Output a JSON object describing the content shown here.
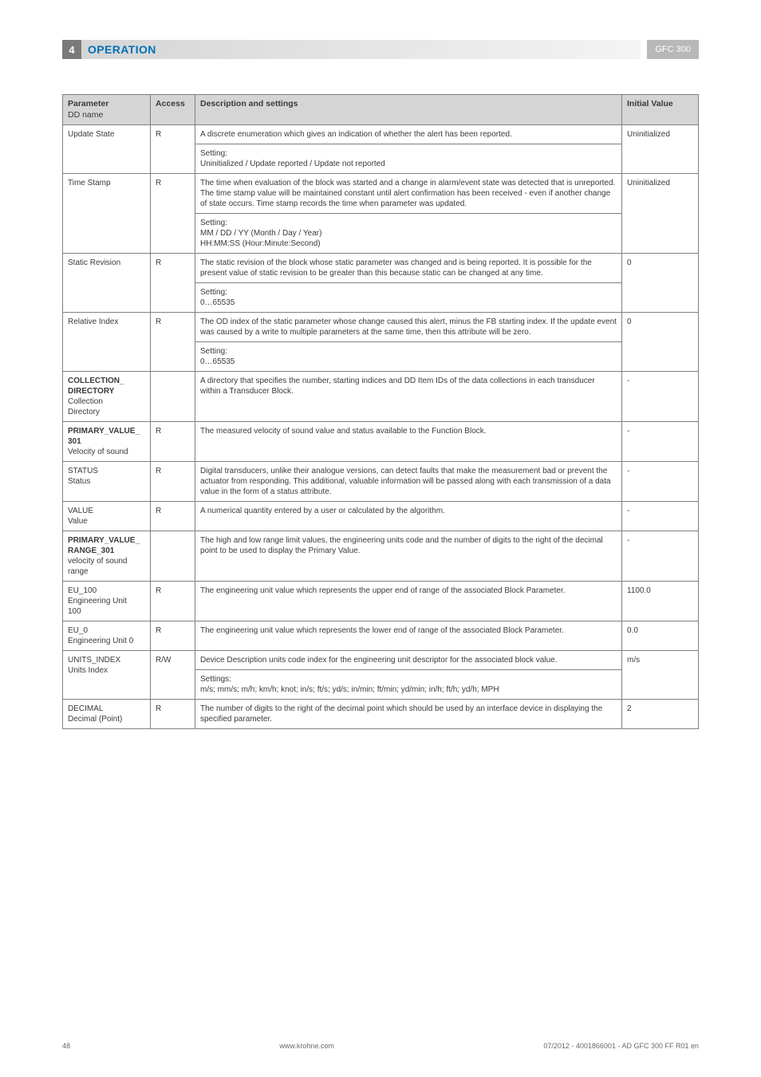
{
  "header": {
    "section_num": "4",
    "section_title": "OPERATION",
    "model": "GFC 300"
  },
  "table": {
    "head": {
      "param": "Parameter",
      "param_sub": "DD name",
      "access": "Access",
      "desc": "Description and settings",
      "initial": "Initial Value"
    },
    "rows": [
      {
        "param_bold": "",
        "param": "Update State",
        "access": "R",
        "desc": "A discrete enumeration which gives an indication of whether the alert has been reported.",
        "setting": "Setting:\nUninitialized / Update reported / Update not reported",
        "initial": "Uninitialized"
      },
      {
        "param_bold": "",
        "param": "Time Stamp",
        "access": "R",
        "desc": "The time when evaluation of the block was started and a change in alarm/event state was detected that is unreported. The time stamp value will be maintained constant until alert confirmation has been received - even if another change of state occurs. Time stamp records the time when parameter was updated.",
        "setting": "Setting:\nMM / DD / YY (Month / Day / Year)\nHH:MM:SS (Hour:Minute:Second)",
        "initial": "Uninitialized"
      },
      {
        "param_bold": "",
        "param": "Static Revision",
        "access": "R",
        "desc": "The static revision of the block whose static parameter was changed and is being reported. It is possible for the present value of static revision to be greater than this because static can be changed at any time.",
        "setting": "Setting:\n0…65535",
        "initial": "0"
      },
      {
        "param_bold": "",
        "param": "Relative Index",
        "access": "R",
        "desc": "The OD index of the static parameter whose change caused this alert, minus the FB starting index. If the update event was caused by a write to multiple parameters at the same time, then this attribute will be zero.",
        "setting": "Setting:\n0…65535",
        "initial": "0"
      },
      {
        "param_bold": "COLLECTION_\nDIRECTORY",
        "param": "Collection\nDirectory",
        "access": "",
        "desc": "A directory that specifies the number, starting indices and DD Item IDs of the data collections in each transducer within a Transducer Block.",
        "setting": "",
        "initial": "-"
      },
      {
        "param_bold": "PRIMARY_VALUE_\n301",
        "param": "Velocity of sound",
        "access": "R",
        "desc": "The measured velocity of sound value and status available to the Function Block.",
        "setting": "",
        "initial": "-"
      },
      {
        "param_bold": "",
        "param": "STATUS\nStatus",
        "access": "R",
        "desc": "Digital transducers, unlike their analogue versions, can detect faults that make the measurement bad or prevent the actuator from responding. This additional, valuable information will be passed along with each transmission of a data value in the form of a status attribute.",
        "setting": "",
        "initial": "-"
      },
      {
        "param_bold": "",
        "param": "VALUE\nValue",
        "access": "R",
        "desc": "A numerical quantity entered by a user or calculated by the algorithm.",
        "setting": "",
        "initial": "-"
      },
      {
        "param_bold": "PRIMARY_VALUE_\nRANGE_301",
        "param": "velocity of sound\nrange",
        "access": "",
        "desc": "The high and low range limit values, the engineering units code and the number of digits to the right of the decimal point to be used to display the Primary Value.",
        "setting": "",
        "initial": "-"
      },
      {
        "param_bold": "",
        "param": "EU_100\nEngineering Unit\n100",
        "access": "R",
        "desc": "The engineering unit value which represents the upper end of range of the associated Block Parameter.",
        "setting": "",
        "initial": "1100.0"
      },
      {
        "param_bold": "",
        "param": "EU_0\nEngineering Unit 0",
        "access": "R",
        "desc": "The engineering unit value which represents the lower end of range of the associated Block Parameter.",
        "setting": "",
        "initial": "0.0"
      },
      {
        "param_bold": "",
        "param": "UNITS_INDEX\nUnits Index",
        "access": "R/W",
        "desc": "Device Description units code index for the engineering unit descriptor for the associated block value.",
        "setting": "Settings:\nm/s; mm/s; m/h; km/h; knot; in/s; ft/s; yd/s; in/min; ft/min; yd/min; in/h; ft/h; yd/h; MPH",
        "initial": "m/s"
      },
      {
        "param_bold": "",
        "param": "DECIMAL\nDecimal (Point)",
        "access": "R",
        "desc": "The number of digits to the right of the decimal point which should be used by an interface device in displaying the specified parameter.",
        "setting": "",
        "initial": "2"
      }
    ]
  },
  "footer": {
    "page": "48",
    "site": "www.krohne.com",
    "doc": "07/2012 - 4001866001 - AD GFC 300 FF R01 en"
  }
}
